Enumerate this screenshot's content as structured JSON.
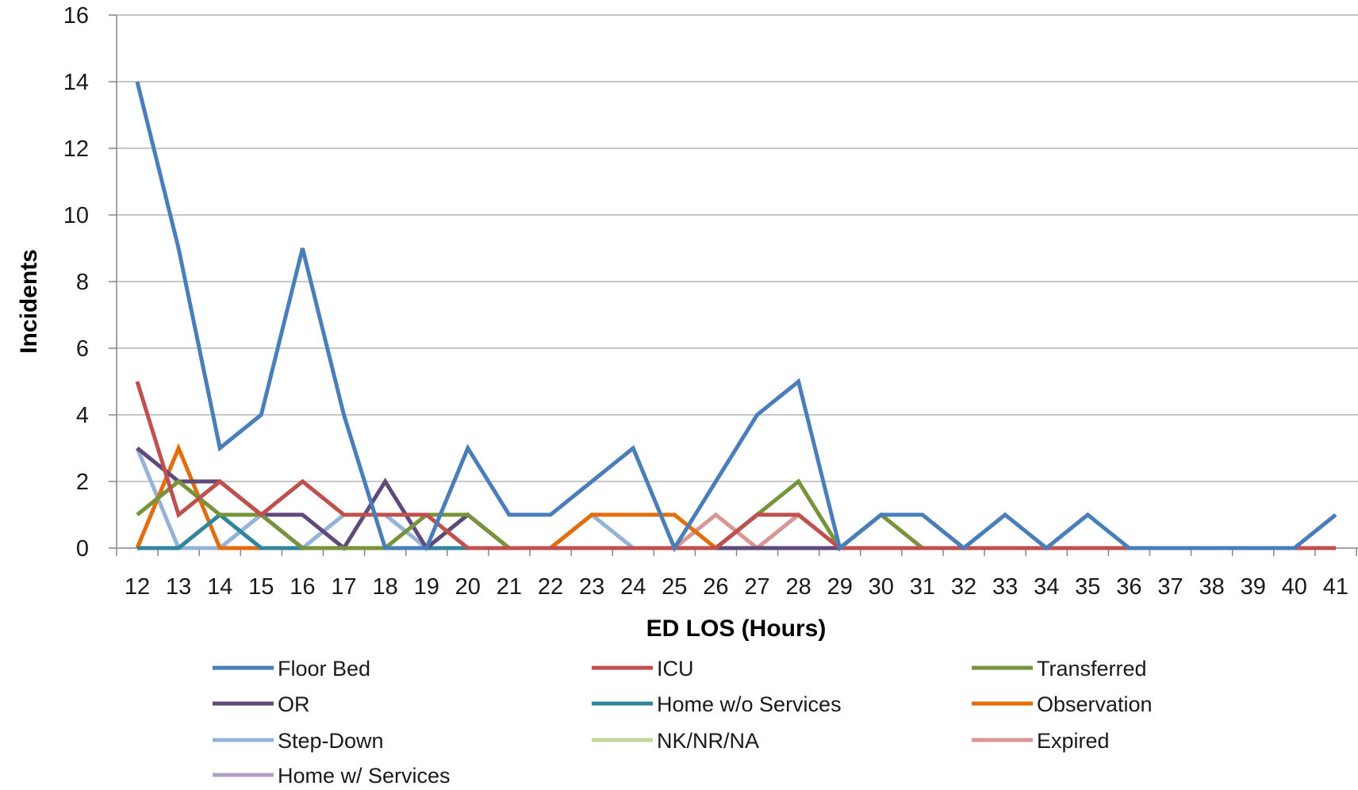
{
  "chart_data": {
    "type": "line",
    "title": "",
    "xlabel": "ED LOS (Hours)",
    "ylabel": "Incidents",
    "categories": [
      "12",
      "13",
      "14",
      "15",
      "16",
      "17",
      "18",
      "19",
      "20",
      "21",
      "22",
      "23",
      "24",
      "25",
      "26",
      "27",
      "28",
      "29",
      "30",
      "31",
      "32",
      "33",
      "34",
      "35",
      "36",
      "37",
      "38",
      "39",
      "40",
      "41"
    ],
    "ylim": [
      0,
      16
    ],
    "yticks": [
      0,
      2,
      4,
      6,
      8,
      10,
      12,
      14,
      16
    ],
    "grid": true,
    "legend_position": "bottom",
    "series": [
      {
        "name": "Expired",
        "color": "#d99694",
        "values": [
          0,
          0,
          0,
          0,
          0,
          0,
          0,
          0,
          0,
          0,
          0,
          0,
          0,
          0,
          1,
          0,
          1,
          0,
          0,
          0,
          0,
          0,
          0,
          0,
          0,
          0,
          0,
          0,
          0,
          0
        ]
      },
      {
        "name": "NK/NR/NA",
        "color": "#c3d69b",
        "values": [
          0,
          0,
          0,
          0,
          0,
          0,
          0,
          0,
          0,
          0,
          0,
          0,
          0,
          0,
          0,
          0,
          0,
          0,
          0,
          0,
          0,
          0,
          0,
          0,
          0,
          0,
          0,
          0,
          0,
          0
        ]
      },
      {
        "name": "Home w/ Services",
        "color": "#b3a2c7",
        "values": [
          0,
          0,
          0,
          0,
          0,
          0,
          0,
          0,
          0,
          0,
          0,
          0,
          0,
          0,
          0,
          0,
          0,
          0,
          0,
          0,
          0,
          0,
          0,
          0,
          0,
          0,
          0,
          0,
          0,
          0
        ]
      },
      {
        "name": "Step-Down",
        "color": "#95b3d7",
        "values": [
          3,
          0,
          0,
          1,
          0,
          1,
          1,
          0,
          0,
          0,
          0,
          1,
          0,
          0,
          0,
          0,
          0,
          0,
          0,
          0,
          0,
          0,
          0,
          0,
          0,
          0,
          0,
          0,
          0,
          0
        ]
      },
      {
        "name": "Observation",
        "color": "#e46c0a",
        "values": [
          0,
          3,
          0,
          0,
          0,
          0,
          0,
          0,
          0,
          0,
          0,
          1,
          1,
          1,
          0,
          0,
          0,
          0,
          0,
          0,
          0,
          0,
          0,
          0,
          0,
          0,
          0,
          0,
          0,
          0
        ]
      },
      {
        "name": "Home w/o Services",
        "color": "#31859c",
        "values": [
          0,
          0,
          1,
          0,
          0,
          0,
          0,
          0,
          0,
          0,
          0,
          0,
          0,
          0,
          0,
          0,
          0,
          0,
          0,
          0,
          0,
          0,
          0,
          0,
          0,
          0,
          0,
          0,
          0,
          0
        ]
      },
      {
        "name": "OR",
        "color": "#604a7b",
        "values": [
          3,
          2,
          2,
          1,
          1,
          0,
          2,
          0,
          1,
          0,
          0,
          0,
          0,
          0,
          0,
          0,
          0,
          0,
          0,
          0,
          0,
          0,
          0,
          0,
          0,
          0,
          0,
          0,
          0,
          0
        ]
      },
      {
        "name": "Transferred",
        "color": "#77933c",
        "values": [
          1,
          2,
          1,
          1,
          0,
          0,
          0,
          1,
          1,
          0,
          0,
          0,
          0,
          0,
          0,
          1,
          2,
          0,
          1,
          0,
          0,
          0,
          0,
          0,
          0,
          0,
          0,
          0,
          0,
          0
        ]
      },
      {
        "name": "ICU",
        "color": "#c0504d",
        "values": [
          5,
          1,
          2,
          1,
          2,
          1,
          1,
          1,
          0,
          0,
          0,
          0,
          0,
          0,
          0,
          1,
          1,
          0,
          0,
          0,
          0,
          0,
          0,
          0,
          0,
          0,
          0,
          0,
          0,
          0
        ]
      },
      {
        "name": "Floor Bed",
        "color": "#4a7ebb",
        "values": [
          14,
          9,
          3,
          4,
          9,
          4,
          0,
          0,
          3,
          1,
          1,
          2,
          3,
          0,
          2,
          4,
          5,
          0,
          1,
          1,
          0,
          1,
          0,
          1,
          0,
          0,
          0,
          0,
          0,
          1
        ]
      }
    ],
    "legend_order": [
      "Floor Bed",
      "ICU",
      "Transferred",
      "OR",
      "Home w/o Services",
      "Observation",
      "Step-Down",
      "NK/NR/NA",
      "Expired",
      "Home w/ Services"
    ]
  }
}
